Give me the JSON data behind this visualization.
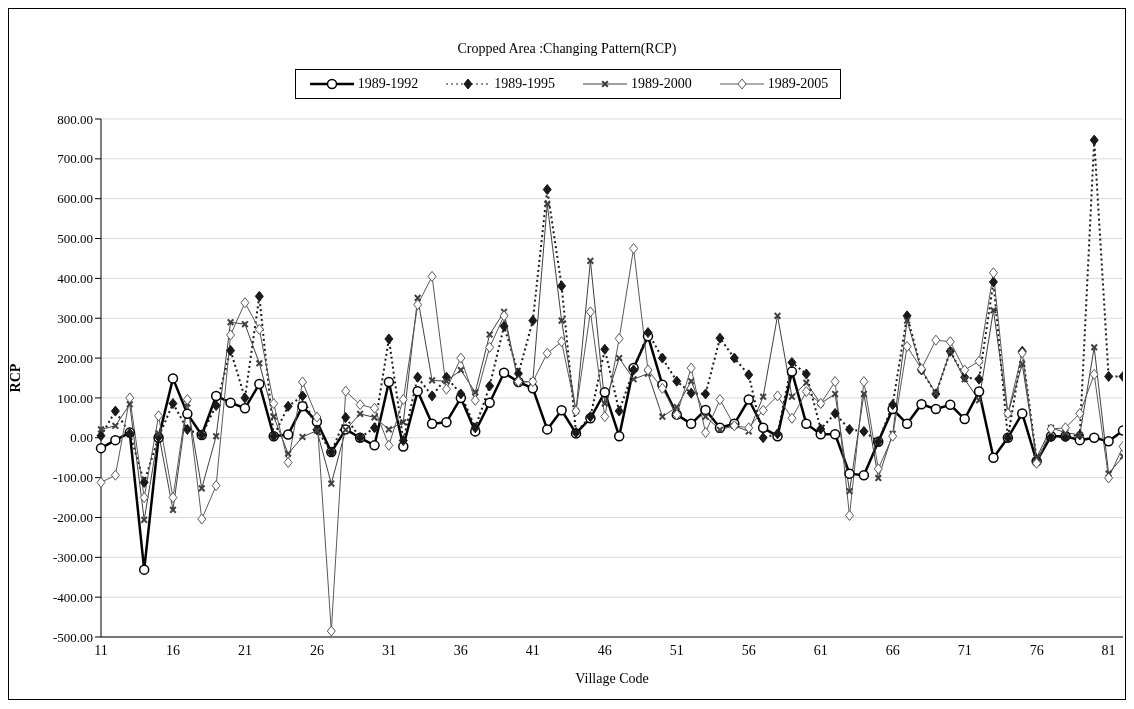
{
  "chart_data": {
    "type": "line",
    "title": "Cropped Area :Changing Pattern(RCP)",
    "xlabel": "Village Code",
    "ylabel": "RCP",
    "categories": [
      "11",
      null,
      null,
      null,
      null,
      "16",
      null,
      null,
      null,
      null,
      "21",
      null,
      null,
      null,
      null,
      "26",
      null,
      null,
      null,
      null,
      "31",
      null,
      null,
      null,
      null,
      "36",
      null,
      null,
      null,
      null,
      "41",
      null,
      null,
      null,
      null,
      "46",
      null,
      null,
      null,
      null,
      "51",
      null,
      null,
      null,
      null,
      "56",
      null,
      null,
      null,
      null,
      "61",
      null,
      null,
      null,
      null,
      "66",
      null,
      null,
      null,
      null,
      "71",
      null,
      null,
      null,
      null,
      "76",
      null,
      null,
      null,
      null,
      "81",
      null
    ],
    "series": [
      {
        "name": "1989-1992",
        "color": "#000000",
        "marker": "circle",
        "line_style": "solid",
        "values": [
          -26,
          -6,
          13,
          -331,
          0,
          149,
          60,
          7,
          105,
          88,
          74,
          135,
          4,
          8,
          79,
          40,
          -36,
          21,
          0,
          -19,
          140,
          -22,
          117,
          35,
          39,
          100,
          16,
          88,
          163,
          140,
          124,
          21,
          69,
          11,
          49,
          114,
          4,
          175,
          255,
          133,
          58,
          35,
          70,
          25,
          35,
          96,
          25,
          4,
          166,
          35,
          9,
          9,
          -90,
          -94,
          -10,
          72,
          35,
          84,
          72,
          83,
          47,
          116,
          -50,
          0,
          61,
          -59,
          4,
          4,
          -6,
          0,
          -9,
          18
        ]
      },
      {
        "name": "1989-1995",
        "color": "#1a1a1a",
        "marker": "diamond",
        "line_style": "dotted",
        "values": [
          5,
          67,
          11,
          -112,
          2,
          86,
          21,
          7,
          81,
          219,
          100,
          355,
          4,
          79,
          105,
          20,
          -36,
          51,
          0,
          25,
          248,
          -7,
          152,
          105,
          152,
          110,
          25,
          130,
          280,
          161,
          294,
          623,
          381,
          13,
          53,
          222,
          67,
          170,
          264,
          200,
          142,
          112,
          110,
          250,
          200,
          158,
          0,
          10,
          189,
          160,
          22,
          61,
          21,
          16,
          -10,
          83,
          306,
          170,
          110,
          217,
          152,
          147,
          391,
          0,
          217,
          -54,
          2,
          2,
          7,
          747,
          154,
          154
        ]
      },
      {
        "name": "1989-2000",
        "color": "#404040",
        "marker": "cross",
        "line_style": "solid",
        "values": [
          21,
          30,
          84,
          -206,
          11,
          -181,
          86,
          -127,
          4,
          290,
          285,
          187,
          53,
          -40,
          2,
          18,
          -115,
          20,
          60,
          51,
          21,
          39,
          351,
          144,
          142,
          170,
          114,
          259,
          316,
          138,
          142,
          587,
          294,
          67,
          444,
          86,
          200,
          147,
          161,
          53,
          77,
          142,
          53,
          20,
          30,
          16,
          103,
          306,
          103,
          138,
          86,
          110,
          -134,
          110,
          -101,
          10,
          294,
          170,
          112,
          217,
          147,
          94,
          320,
          60,
          185,
          -50,
          25,
          13,
          7,
          227,
          -90,
          -47
        ]
      },
      {
        "name": "1989-2005",
        "color": "#595959",
        "marker": "diamond",
        "line_style": "solid",
        "values": [
          -112,
          -94,
          100,
          -150,
          55,
          -150,
          96,
          -204,
          -120,
          258,
          339,
          272,
          86,
          -62,
          140,
          52,
          -485,
          117,
          83,
          74,
          -19,
          96,
          334,
          405,
          122,
          200,
          94,
          227,
          306,
          141,
          141,
          212,
          241,
          67,
          316,
          53,
          249,
          475,
          170,
          124,
          58,
          175,
          13,
          96,
          30,
          25,
          69,
          105,
          49,
          116,
          86,
          141,
          -195,
          141,
          -78,
          4,
          229,
          173,
          245,
          241,
          170,
          192,
          414,
          61,
          213,
          -64,
          22,
          25,
          61,
          159,
          -101,
          -22
        ]
      }
    ],
    "ylim": [
      -500,
      800
    ],
    "yticks": [
      {
        "value": -500,
        "label": "-500.00"
      },
      {
        "value": -400,
        "label": "-400.00"
      },
      {
        "value": -300,
        "label": "-300.00"
      },
      {
        "value": -200,
        "label": "-200.00"
      },
      {
        "value": -100,
        "label": "-100.00"
      },
      {
        "value": 0,
        "label": "0.00"
      },
      {
        "value": 100,
        "label": "100.00"
      },
      {
        "value": 200,
        "label": "200.00"
      },
      {
        "value": 300,
        "label": "300.00"
      },
      {
        "value": 400,
        "label": "400.00"
      },
      {
        "value": 500,
        "label": "500.00"
      },
      {
        "value": 600,
        "label": "600.00"
      },
      {
        "value": 700,
        "label": "700.00"
      },
      {
        "value": 800,
        "label": "800.00"
      }
    ],
    "grid": "y",
    "legend": "top"
  }
}
